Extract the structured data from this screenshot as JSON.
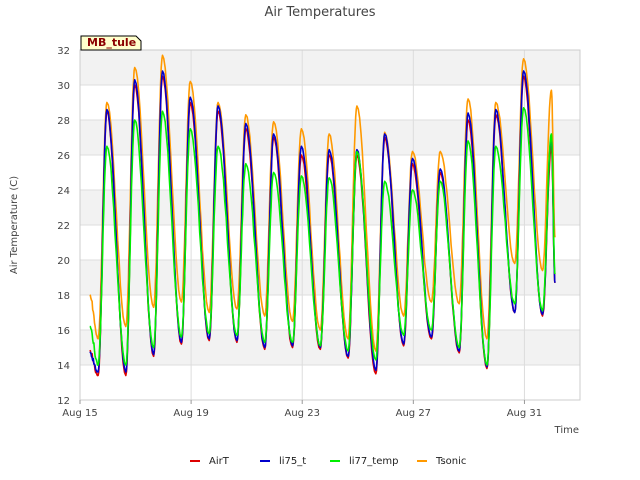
{
  "chart_data": {
    "type": "line",
    "title": "Air Temperatures",
    "xlabel": "Time",
    "ylabel": "Air Temperature (C)",
    "site_label": "MB_tule",
    "ylim": [
      12,
      32
    ],
    "xlim": [
      "Aug 15",
      "Sep 2"
    ],
    "y_ticks": [
      "12",
      "14",
      "16",
      "18",
      "20",
      "22",
      "24",
      "26",
      "28",
      "30",
      "32"
    ],
    "x_ticks": [
      {
        "label": "Aug 15",
        "day": 0
      },
      {
        "label": "Aug 19",
        "day": 4
      },
      {
        "label": "Aug 23",
        "day": 8
      },
      {
        "label": "Aug 27",
        "day": 12
      },
      {
        "label": "Aug 31",
        "day": 16
      }
    ],
    "grid": true,
    "legend_position": "bottom-center",
    "days": [
      "Aug 15",
      "Aug 16",
      "Aug 17",
      "Aug 18",
      "Aug 19",
      "Aug 20",
      "Aug 21",
      "Aug 22",
      "Aug 23",
      "Aug 24",
      "Aug 25",
      "Aug 26",
      "Aug 27",
      "Aug 28",
      "Aug 29",
      "Aug 30",
      "Aug 31",
      "Sep 1"
    ],
    "series": [
      {
        "name": "AirT",
        "color": "#dd0000",
        "start": 14.8,
        "end": 18.7,
        "min": [
          13.4,
          13.4,
          14.5,
          15.2,
          15.4,
          15.3,
          14.9,
          15.0,
          14.9,
          14.4,
          13.5,
          15.1,
          15.5,
          14.7,
          13.8,
          17.0,
          16.8
        ],
        "max": [
          28.5,
          30.0,
          30.5,
          29.0,
          28.5,
          27.5,
          27.0,
          26.0,
          26.0,
          26.0,
          27.0,
          25.5,
          25.0,
          28.0,
          28.3,
          30.5,
          26.5
        ]
      },
      {
        "name": "li75_t",
        "color": "#0000cc",
        "start": 14.7,
        "end": 18.7,
        "min": [
          13.6,
          13.6,
          14.6,
          15.3,
          15.5,
          15.4,
          15.0,
          15.1,
          15.0,
          14.5,
          13.7,
          15.2,
          15.6,
          14.8,
          13.9,
          17.0,
          16.9
        ],
        "max": [
          28.6,
          30.3,
          30.8,
          29.3,
          28.8,
          27.8,
          27.2,
          26.5,
          26.3,
          26.3,
          27.2,
          25.8,
          25.2,
          28.4,
          28.6,
          30.8,
          27.0
        ]
      },
      {
        "name": "li77_temp",
        "color": "#00ee00",
        "start": 16.2,
        "end": 19.2,
        "min": [
          14.0,
          14.0,
          15.0,
          15.6,
          15.8,
          15.7,
          15.3,
          15.3,
          15.1,
          14.8,
          14.3,
          15.7,
          16.0,
          15.0,
          14.0,
          17.5,
          17.1
        ],
        "max": [
          26.5,
          28.0,
          28.5,
          27.5,
          26.5,
          25.5,
          25.0,
          24.8,
          24.7,
          26.2,
          24.5,
          24.0,
          24.5,
          26.8,
          26.5,
          28.7,
          27.2
        ]
      },
      {
        "name": "Tsonic",
        "color": "#ff9900",
        "start": 18.0,
        "end": 21.3,
        "min": [
          15.5,
          16.2,
          17.3,
          17.6,
          17.0,
          17.2,
          16.8,
          16.5,
          16.0,
          15.5,
          14.8,
          16.8,
          17.6,
          17.5,
          15.5,
          19.8,
          19.4
        ],
        "max": [
          29.0,
          31.0,
          31.7,
          30.2,
          29.0,
          28.3,
          27.9,
          27.5,
          27.2,
          28.8,
          27.3,
          26.2,
          26.2,
          29.2,
          29.0,
          31.5,
          29.7
        ]
      }
    ]
  }
}
